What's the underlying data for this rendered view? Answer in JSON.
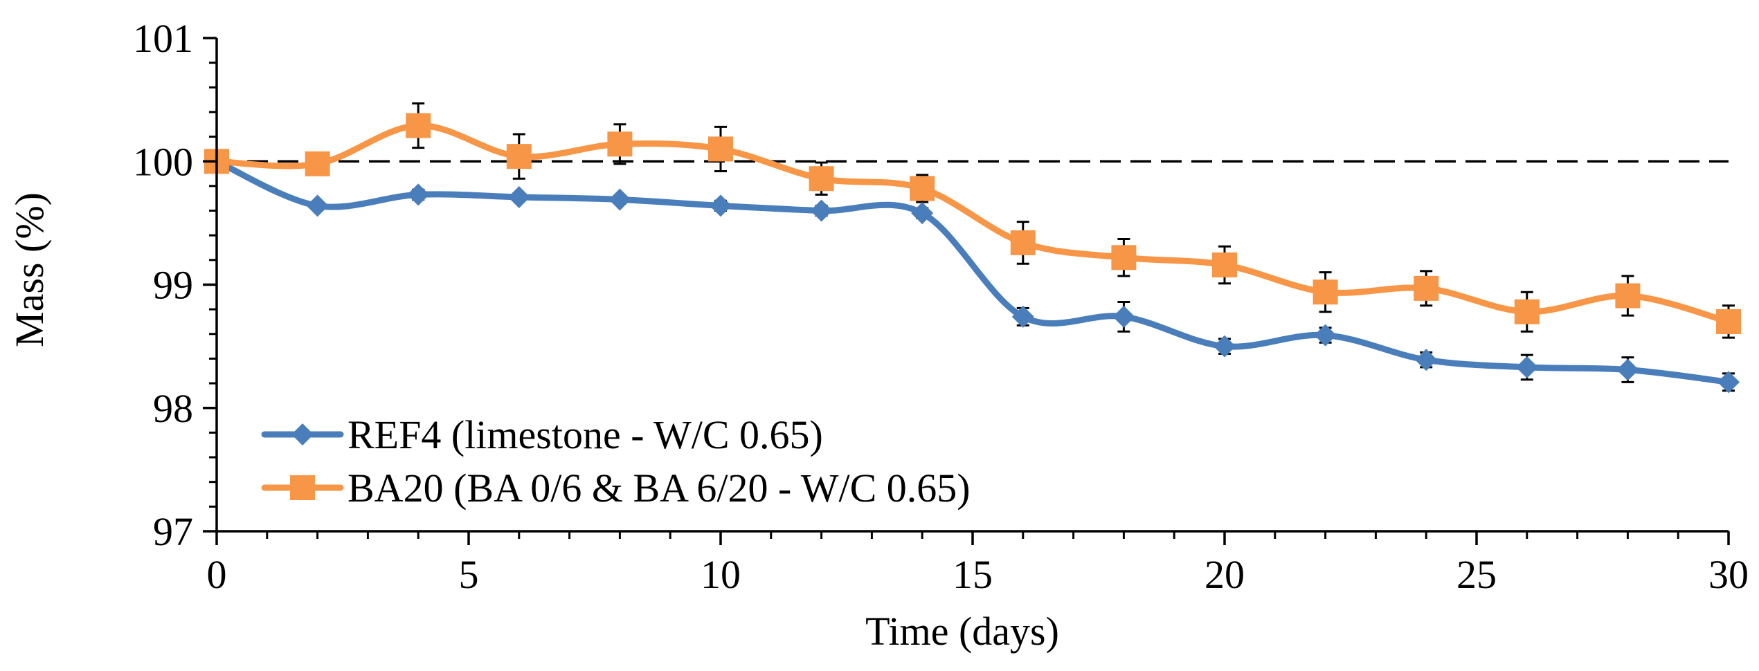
{
  "chart_data": {
    "type": "line",
    "title": "",
    "xlabel": "Time  (days)",
    "ylabel": "Mass (%)",
    "xlim": [
      0,
      30
    ],
    "ylim": [
      97,
      101
    ],
    "x_ticks": [
      0,
      5,
      10,
      15,
      20,
      25,
      30
    ],
    "y_ticks": [
      97,
      98,
      99,
      100,
      101
    ],
    "y_minor_step": 0.2,
    "reference_line": {
      "y": 100,
      "style": "dashed"
    },
    "legend_position": "bottom-left",
    "grid": false,
    "x": [
      0,
      2,
      4,
      6,
      8,
      10,
      12,
      14,
      16,
      18,
      20,
      22,
      24,
      26,
      28,
      30
    ],
    "series": [
      {
        "name": "REF4 (limestone - W/C 0.65)",
        "color": "#4a7ebb",
        "marker": "diamond",
        "values": [
          100,
          99.64,
          99.73,
          99.71,
          99.69,
          99.64,
          99.6,
          99.58,
          98.74,
          98.74,
          98.5,
          98.59,
          98.39,
          98.33,
          98.31,
          98.21
        ],
        "errors": [
          0,
          0.03,
          0.04,
          0.03,
          0.03,
          0.04,
          0.04,
          0.04,
          0.07,
          0.12,
          0.06,
          0.06,
          0.06,
          0.1,
          0.1,
          0.07
        ]
      },
      {
        "name": "BA20 (BA 0/6 & BA 6/20 - W/C 0.65)",
        "color": "#f79646",
        "marker": "square",
        "values": [
          100,
          99.98,
          100.29,
          100.04,
          100.14,
          100.1,
          99.86,
          99.78,
          99.34,
          99.22,
          99.16,
          98.94,
          98.97,
          98.78,
          98.91,
          98.7
        ],
        "errors": [
          0,
          0.04,
          0.18,
          0.18,
          0.16,
          0.18,
          0.13,
          0.11,
          0.17,
          0.15,
          0.15,
          0.16,
          0.14,
          0.16,
          0.16,
          0.13
        ]
      }
    ]
  }
}
